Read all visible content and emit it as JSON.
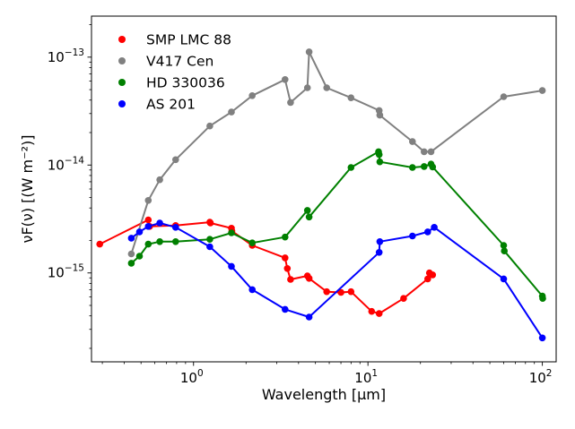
{
  "chart_data": {
    "type": "line",
    "xscale": "log",
    "yscale": "log",
    "xlim": [
      0.26,
      120
    ],
    "ylim": [
      1.5e-16,
      2.4e-13
    ],
    "xlabel": "Wavelength  [μm]",
    "ylabel": "νF(ν)  [(W m⁻²)]",
    "xticks": [
      {
        "value": 1,
        "label_base": "10",
        "label_exp": "0"
      },
      {
        "value": 10,
        "label_base": "10",
        "label_exp": "1"
      },
      {
        "value": 100,
        "label_base": "10",
        "label_exp": "2"
      }
    ],
    "yticks": [
      {
        "value": 1e-15,
        "label_base": "10",
        "label_exp": "−15"
      },
      {
        "value": 1e-14,
        "label_base": "10",
        "label_exp": "−14"
      },
      {
        "value": 1e-13,
        "label_base": "10",
        "label_exp": "−13"
      }
    ],
    "legend_position": "top-left",
    "series": [
      {
        "name": "SMP LMC 88",
        "color": "#ff0000",
        "points": [
          [
            0.29,
            1.85e-15
          ],
          [
            0.55,
            3.1e-15
          ],
          [
            0.56,
            2.7e-15
          ],
          [
            0.79,
            2.75e-15
          ],
          [
            1.24,
            2.95e-15
          ],
          [
            1.25,
            2.9e-15
          ],
          [
            1.65,
            2.6e-15
          ],
          [
            1.66,
            2.45e-15
          ],
          [
            2.17,
            1.8e-15
          ],
          [
            3.35,
            1.38e-15
          ],
          [
            3.45,
            1.1e-15
          ],
          [
            3.6,
            8.7e-16
          ],
          [
            4.5,
            9.4e-16
          ],
          [
            4.6,
            8.9e-16
          ],
          [
            5.8,
            6.7e-16
          ],
          [
            7.0,
            6.6e-16
          ],
          [
            8.0,
            6.7e-16
          ],
          [
            10.5,
            4.4e-16
          ],
          [
            11.6,
            4.2e-16
          ],
          [
            16.0,
            5.8e-16
          ],
          [
            22.0,
            8.8e-16
          ],
          [
            22.5,
            1e-15
          ],
          [
            23.5,
            9.6e-16
          ]
        ]
      },
      {
        "name": "V417 Cen",
        "color": "#808080",
        "points": [
          [
            0.44,
            1.5e-15
          ],
          [
            0.55,
            4.7e-15
          ],
          [
            0.64,
            7.3e-15
          ],
          [
            0.79,
            1.12e-14
          ],
          [
            1.24,
            2.3e-14
          ],
          [
            1.65,
            3.1e-14
          ],
          [
            2.17,
            4.4e-14
          ],
          [
            3.35,
            6.2e-14
          ],
          [
            3.6,
            3.8e-14
          ],
          [
            4.5,
            5.2e-14
          ],
          [
            4.6,
            1.12e-13
          ],
          [
            5.8,
            5.2e-14
          ],
          [
            8.0,
            4.2e-14
          ],
          [
            11.6,
            3.2e-14
          ],
          [
            11.7,
            2.9e-14
          ],
          [
            18.0,
            1.65e-14
          ],
          [
            21.0,
            1.33e-14
          ],
          [
            23.0,
            1.33e-14
          ],
          [
            60.0,
            4.3e-14
          ],
          [
            100.0,
            4.9e-14
          ]
        ]
      },
      {
        "name": "HD 330036",
        "color": "#008000",
        "points": [
          [
            0.44,
            1.23e-15
          ],
          [
            0.49,
            1.43e-15
          ],
          [
            0.55,
            1.85e-15
          ],
          [
            0.64,
            1.95e-15
          ],
          [
            0.79,
            1.95e-15
          ],
          [
            1.24,
            2.05e-15
          ],
          [
            1.65,
            2.35e-15
          ],
          [
            2.17,
            1.9e-15
          ],
          [
            3.35,
            2.15e-15
          ],
          [
            4.5,
            3.8e-15
          ],
          [
            4.6,
            3.3e-15
          ],
          [
            8.0,
            9.5e-15
          ],
          [
            11.5,
            1.33e-14
          ],
          [
            11.6,
            1.25e-14
          ],
          [
            11.7,
            1.07e-14
          ],
          [
            18.0,
            9.5e-15
          ],
          [
            21.0,
            9.7e-15
          ],
          [
            23.0,
            1.02e-14
          ],
          [
            23.5,
            9.6e-15
          ],
          [
            60.0,
            1.8e-15
          ],
          [
            60.5,
            1.6e-15
          ],
          [
            100.0,
            6.1e-16
          ],
          [
            100.5,
            5.8e-16
          ]
        ]
      },
      {
        "name": "AS 201",
        "color": "#0000ff",
        "points": [
          [
            0.44,
            2.1e-15
          ],
          [
            0.49,
            2.4e-15
          ],
          [
            0.55,
            2.7e-15
          ],
          [
            0.64,
            2.9e-15
          ],
          [
            0.79,
            2.65e-15
          ],
          [
            1.24,
            1.75e-15
          ],
          [
            1.65,
            1.15e-15
          ],
          [
            2.17,
            7e-16
          ],
          [
            3.35,
            4.6e-16
          ],
          [
            4.6,
            3.9e-16
          ],
          [
            11.6,
            1.55e-15
          ],
          [
            11.7,
            1.95e-15
          ],
          [
            18.0,
            2.2e-15
          ],
          [
            22.0,
            2.4e-15
          ],
          [
            24.0,
            2.65e-15
          ],
          [
            60.0,
            8.8e-16
          ],
          [
            100.0,
            2.5e-16
          ]
        ]
      }
    ]
  }
}
